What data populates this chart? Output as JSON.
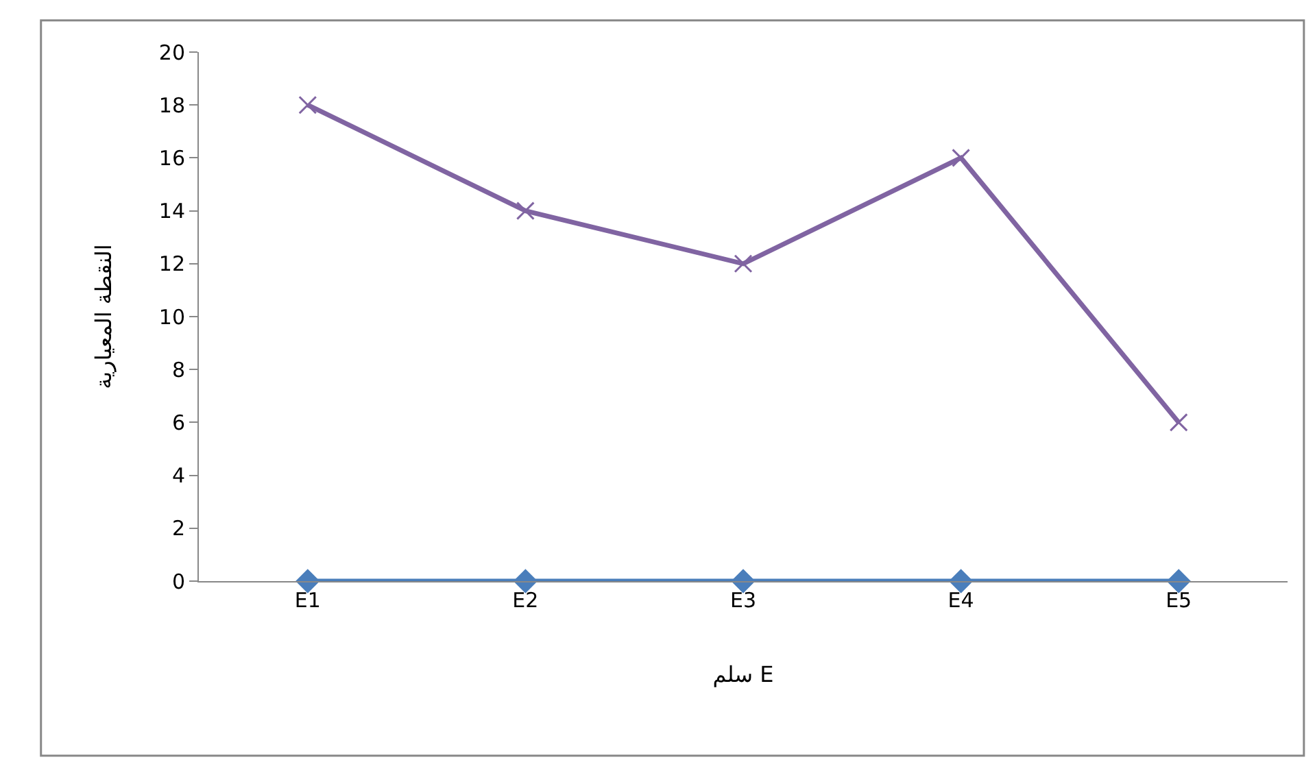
{
  "chart_data": {
    "type": "line",
    "xlabel": "سلم E",
    "ylabel": "النقطة المعيارية",
    "categories": [
      "E1",
      "E2",
      "E3",
      "E4",
      "E5"
    ],
    "series": [
      {
        "color": "#4a7ebb",
        "values": [
          0,
          0,
          0,
          0,
          0
        ],
        "marker": "diamond"
      },
      {
        "color": "#8064a2",
        "values": [
          18,
          14,
          12,
          16,
          6
        ],
        "marker": "cross"
      }
    ],
    "ylim": [
      0,
      20
    ],
    "yticks": [
      0,
      2,
      4,
      6,
      8,
      10,
      12,
      14,
      16,
      18,
      20
    ],
    "grid": false
  }
}
